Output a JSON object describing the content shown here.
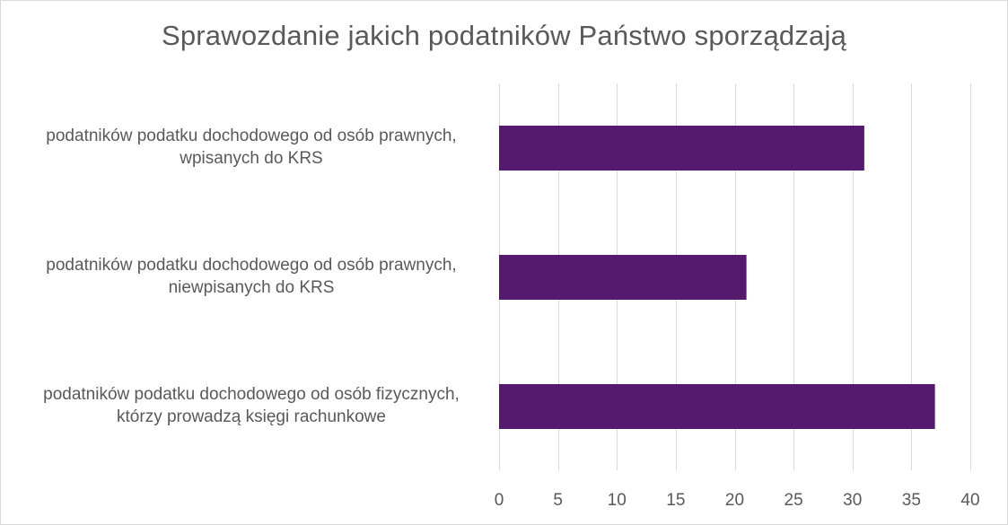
{
  "chart_data": {
    "type": "bar",
    "orientation": "horizontal",
    "title": "Sprawozdanie jakich podatników Państwo sporządzają",
    "categories": [
      [
        "podatników podatku dochodowego od osób prawnych,",
        "wpisanych do KRS"
      ],
      [
        "podatników podatku dochodowego od osób prawnych,",
        "niewpisanych do KRS"
      ],
      [
        "podatników podatku dochodowego od osób fizycznych,",
        "którzy prowadzą księgi rachunkowe"
      ]
    ],
    "values": [
      31,
      21,
      37
    ],
    "xlim": [
      0,
      40
    ],
    "xticks": [
      0,
      5,
      10,
      15,
      20,
      25,
      30,
      35,
      40
    ],
    "grid": true,
    "bar_color": "#551a6e",
    "grid_color": "#d9d9d9",
    "text_color": "#595959"
  }
}
